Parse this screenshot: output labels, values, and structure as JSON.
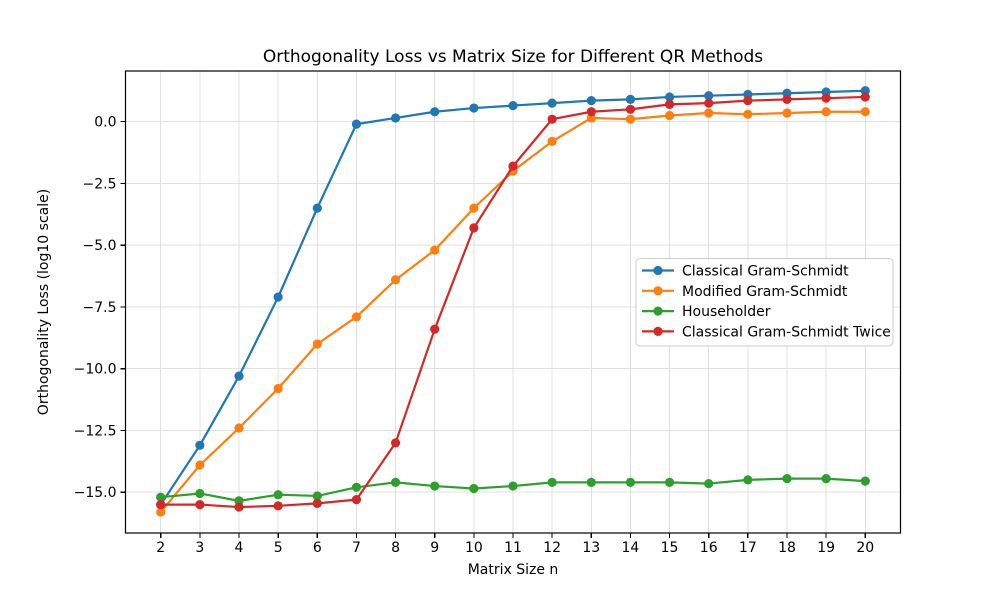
{
  "figure": {
    "background": "#ffffff",
    "text_color": "#000000",
    "grid_color": "#e0e0e0",
    "spine_color": "#000000"
  },
  "chart_data": {
    "type": "line",
    "title": "Orthogonality Loss vs Matrix Size for Different QR Methods",
    "xlabel": "Matrix Size n",
    "ylabel": "Orthogonality Loss (log10 scale)",
    "grid": true,
    "legend_position": "center right",
    "marker": "o",
    "xlim": [
      1.1,
      20.9
    ],
    "ylim": [
      -16.65,
      2.05
    ],
    "xticks": [
      2,
      3,
      4,
      5,
      6,
      7,
      8,
      9,
      10,
      11,
      12,
      13,
      14,
      15,
      16,
      17,
      18,
      19,
      20
    ],
    "yticks": [
      0,
      -2.5,
      -5,
      -7.5,
      -10,
      -12.5,
      -15
    ],
    "ytick_labels": [
      "0.0",
      "−2.5",
      "−5.0",
      "−7.5",
      "−10.0",
      "−12.5",
      "−15.0"
    ],
    "x": [
      2,
      3,
      4,
      5,
      6,
      7,
      8,
      9,
      10,
      11,
      12,
      13,
      14,
      15,
      16,
      17,
      18,
      19,
      20
    ],
    "series": [
      {
        "name": "Classical Gram-Schmidt",
        "color": "#1f77b4",
        "values": [
          -15.5,
          -13.1,
          -10.3,
          -7.1,
          -3.5,
          -0.1,
          0.15,
          0.4,
          0.55,
          0.65,
          0.75,
          0.85,
          0.9,
          1.0,
          1.05,
          1.1,
          1.15,
          1.2,
          1.25
        ]
      },
      {
        "name": "Modified Gram-Schmidt",
        "color": "#ff7f0e",
        "values": [
          -15.8,
          -13.9,
          -12.4,
          -10.8,
          -9.0,
          -7.9,
          -6.4,
          -5.2,
          -3.5,
          -2.0,
          -0.8,
          0.15,
          0.1,
          0.25,
          0.35,
          0.3,
          0.35,
          0.4,
          0.4
        ]
      },
      {
        "name": "Householder",
        "color": "#2ca02c",
        "values": [
          -15.2,
          -15.05,
          -15.35,
          -15.1,
          -15.15,
          -14.8,
          -14.6,
          -14.75,
          -14.85,
          -14.75,
          -14.6,
          -14.6,
          -14.6,
          -14.6,
          -14.65,
          -14.5,
          -14.45,
          -14.45,
          -14.55
        ]
      },
      {
        "name": "Classical Gram-Schmidt Twice",
        "color": "#d62728",
        "values": [
          -15.5,
          -15.5,
          -15.6,
          -15.55,
          -15.45,
          -15.3,
          -13.0,
          -8.4,
          -4.3,
          -1.8,
          0.1,
          0.4,
          0.5,
          0.7,
          0.75,
          0.85,
          0.9,
          0.95,
          1.0
        ]
      }
    ]
  }
}
